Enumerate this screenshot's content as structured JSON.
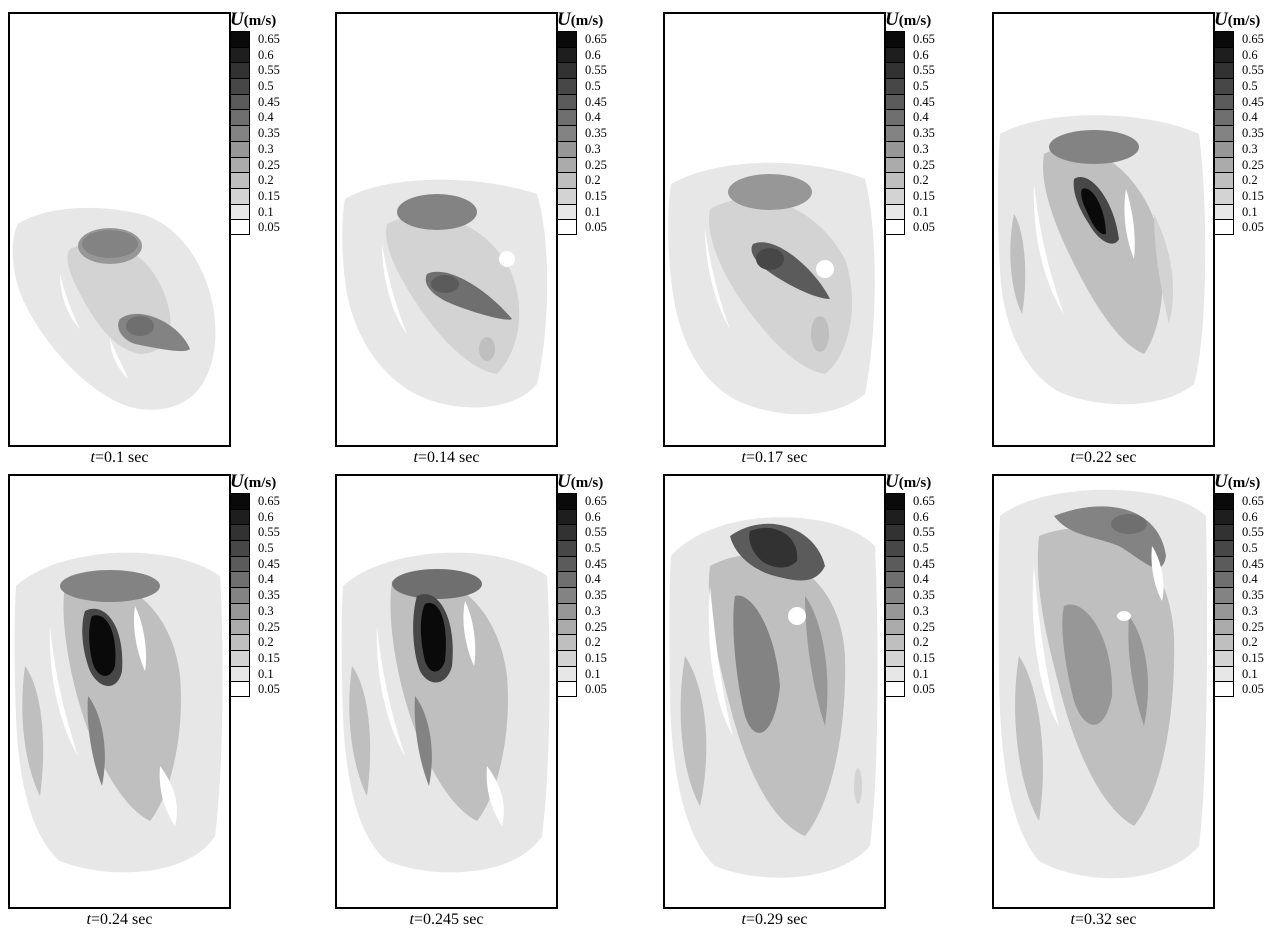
{
  "legend": {
    "symbol": "U",
    "unit": "(m/s)",
    "levels": [
      "0.65",
      "0.6",
      "0.55",
      "0.5",
      "0.45",
      "0.4",
      "0.35",
      "0.3",
      "0.25",
      "0.2",
      "0.15",
      "0.1",
      "0.05"
    ],
    "colors": [
      "#0a0a0a",
      "#1e1e1e",
      "#323232",
      "#474747",
      "#5b5b5b",
      "#6f6f6f",
      "#838383",
      "#979797",
      "#ababab",
      "#bfbfbf",
      "#d3d3d3",
      "#e7e7e7",
      "#ffffff"
    ]
  },
  "panels": [
    {
      "t_label": "t",
      "caption": "=0.1 sec"
    },
    {
      "t_label": "t",
      "caption": "=0.14 sec"
    },
    {
      "t_label": "t",
      "caption": "=0.17 sec"
    },
    {
      "t_label": "t",
      "caption": "=0.22 sec"
    },
    {
      "t_label": "t",
      "caption": "=0.24 sec"
    },
    {
      "t_label": "t",
      "caption": "=0.245 sec"
    },
    {
      "t_label": "t",
      "caption": "=0.29 sec"
    },
    {
      "t_label": "t",
      "caption": "=0.32 sec"
    }
  ]
}
